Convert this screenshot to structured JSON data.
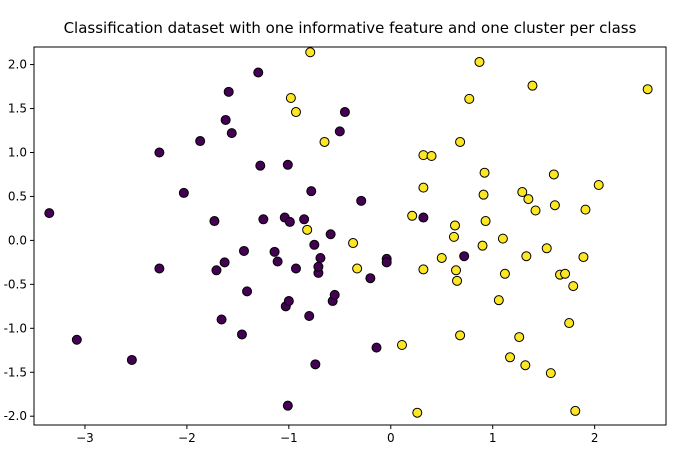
{
  "chart_data": {
    "type": "scatter",
    "title": "Classification dataset with one informative feature and one cluster per class",
    "xlabel": "",
    "ylabel": "",
    "xlim": [
      -3.5,
      2.7
    ],
    "ylim": [
      -2.1,
      2.2
    ],
    "xticks": [
      -3,
      -2,
      -1,
      0,
      1,
      2
    ],
    "yticks": [
      2.0,
      1.5,
      1.0,
      0.5,
      0.0,
      -0.5,
      -1.0,
      -1.5,
      -2.0
    ],
    "ytick_labels": [
      "2.0",
      "1.5",
      "1.0",
      "0.5",
      "0.0",
      "-0.5",
      "-1.0",
      "-1.5",
      "-2.0"
    ],
    "xtick_labels": [
      "−3",
      "−2",
      "−1",
      "0",
      "1",
      "2"
    ],
    "grid": false,
    "legend": "none",
    "series": [
      {
        "color": "#440154",
        "points": [
          [
            -3.35,
            0.31
          ],
          [
            -3.08,
            -1.13
          ],
          [
            -2.54,
            -1.36
          ],
          [
            -2.27,
            1.0
          ],
          [
            -2.27,
            -0.32
          ],
          [
            -2.03,
            0.54
          ],
          [
            -1.87,
            1.13
          ],
          [
            -1.73,
            0.22
          ],
          [
            -1.71,
            -0.34
          ],
          [
            -1.66,
            -0.9
          ],
          [
            -1.63,
            -0.25
          ],
          [
            -1.62,
            1.37
          ],
          [
            -1.59,
            1.69
          ],
          [
            -1.56,
            1.22
          ],
          [
            -1.46,
            -1.07
          ],
          [
            -1.44,
            -0.12
          ],
          [
            -1.41,
            -0.58
          ],
          [
            -1.3,
            1.91
          ],
          [
            -1.28,
            0.85
          ],
          [
            -1.25,
            0.24
          ],
          [
            -1.14,
            -0.13
          ],
          [
            -1.11,
            -0.24
          ],
          [
            -1.04,
            0.26
          ],
          [
            -1.03,
            -0.75
          ],
          [
            -1.0,
            -0.69
          ],
          [
            -1.01,
            0.86
          ],
          [
            -1.01,
            -1.88
          ],
          [
            -0.99,
            0.21
          ],
          [
            -0.93,
            -0.32
          ],
          [
            -0.85,
            0.24
          ],
          [
            -0.8,
            -0.86
          ],
          [
            -0.78,
            0.56
          ],
          [
            -0.75,
            -0.05
          ],
          [
            -0.74,
            -1.41
          ],
          [
            -0.71,
            -0.37
          ],
          [
            -0.71,
            -0.3
          ],
          [
            -0.69,
            -0.2
          ],
          [
            -0.59,
            0.07
          ],
          [
            -0.57,
            -0.69
          ],
          [
            -0.55,
            -0.62
          ],
          [
            -0.45,
            1.46
          ],
          [
            -0.5,
            1.24
          ],
          [
            -0.29,
            0.45
          ],
          [
            -0.2,
            -0.43
          ],
          [
            -0.14,
            -1.22
          ],
          [
            -0.04,
            -0.21
          ],
          [
            -0.04,
            -0.25
          ],
          [
            0.72,
            -0.18
          ],
          [
            0.32,
            0.26
          ]
        ]
      },
      {
        "color": "#fde725",
        "points": [
          [
            -0.79,
            2.14
          ],
          [
            -0.98,
            1.62
          ],
          [
            -0.93,
            1.46
          ],
          [
            -0.65,
            1.12
          ],
          [
            -0.37,
            -0.03
          ],
          [
            -0.33,
            -0.32
          ],
          [
            -0.82,
            0.12
          ],
          [
            0.11,
            -1.19
          ],
          [
            0.21,
            0.28
          ],
          [
            0.26,
            -1.96
          ],
          [
            0.32,
            0.6
          ],
          [
            0.32,
            0.97
          ],
          [
            0.32,
            -0.33
          ],
          [
            0.4,
            0.96
          ],
          [
            0.5,
            -0.2
          ],
          [
            0.62,
            0.04
          ],
          [
            0.63,
            0.17
          ],
          [
            0.64,
            -0.34
          ],
          [
            0.65,
            -0.46
          ],
          [
            0.68,
            1.12
          ],
          [
            0.68,
            -1.08
          ],
          [
            0.77,
            1.61
          ],
          [
            0.87,
            2.03
          ],
          [
            0.9,
            -0.06
          ],
          [
            0.91,
            0.52
          ],
          [
            0.92,
            0.77
          ],
          [
            0.93,
            0.22
          ],
          [
            1.06,
            -0.68
          ],
          [
            1.1,
            0.02
          ],
          [
            1.12,
            -0.38
          ],
          [
            1.17,
            -1.33
          ],
          [
            1.26,
            -1.1
          ],
          [
            1.29,
            0.55
          ],
          [
            1.32,
            -1.42
          ],
          [
            1.35,
            0.47
          ],
          [
            1.33,
            -0.18
          ],
          [
            1.39,
            1.76
          ],
          [
            1.42,
            0.34
          ],
          [
            1.53,
            -0.09
          ],
          [
            1.57,
            -1.51
          ],
          [
            1.6,
            0.75
          ],
          [
            1.61,
            0.4
          ],
          [
            1.66,
            -0.39
          ],
          [
            1.71,
            -0.38
          ],
          [
            1.75,
            -0.94
          ],
          [
            1.79,
            -0.52
          ],
          [
            1.81,
            -1.94
          ],
          [
            1.89,
            -0.19
          ],
          [
            1.91,
            0.35
          ],
          [
            2.04,
            0.63
          ],
          [
            2.52,
            1.72
          ]
        ]
      }
    ]
  }
}
